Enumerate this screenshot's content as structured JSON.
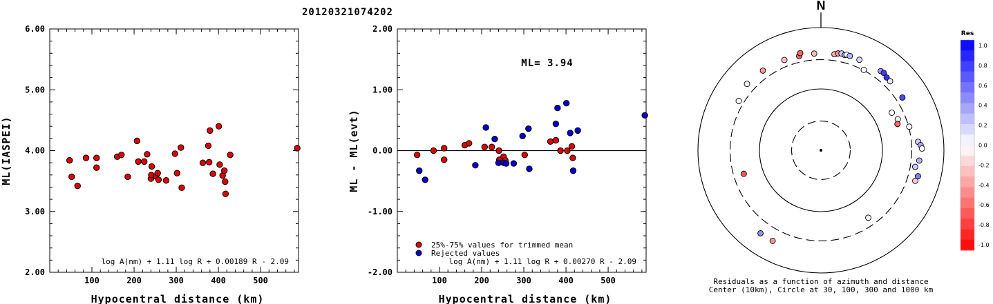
{
  "title": "20120321074202",
  "chart_data": [
    {
      "type": "scatter",
      "name": "ML(IASPEI) vs distance",
      "xlabel": "Hypocentral distance (km)",
      "ylabel": "ML(IASPEI)",
      "xlim": [
        0,
        590
      ],
      "ylim": [
        2.0,
        6.0
      ],
      "xticks": [
        "100",
        "200",
        "300",
        "400",
        "500"
      ],
      "yticks": [
        "2.00",
        "3.00",
        "4.00",
        "5.00",
        "6.00"
      ],
      "formula": "log A(nm) + 1.11 log R + 0.00189 R - 2.09",
      "point_color": "#dd0000",
      "points": [
        [
          47,
          3.84
        ],
        [
          52,
          3.57
        ],
        [
          66,
          3.42
        ],
        [
          86,
          3.88
        ],
        [
          111,
          3.88
        ],
        [
          111,
          3.72
        ],
        [
          160,
          3.9
        ],
        [
          170,
          3.93
        ],
        [
          185,
          3.57
        ],
        [
          207,
          4.16
        ],
        [
          210,
          3.82
        ],
        [
          224,
          3.82
        ],
        [
          231,
          3.94
        ],
        [
          240,
          3.54
        ],
        [
          241,
          3.6
        ],
        [
          242,
          3.74
        ],
        [
          252,
          3.58
        ],
        [
          256,
          3.63
        ],
        [
          258,
          3.52
        ],
        [
          276,
          3.51
        ],
        [
          297,
          3.95
        ],
        [
          302,
          3.63
        ],
        [
          311,
          4.05
        ],
        [
          313,
          3.39
        ],
        [
          363,
          3.8
        ],
        [
          376,
          4.08
        ],
        [
          378,
          3.81
        ],
        [
          380,
          4.33
        ],
        [
          387,
          3.62
        ],
        [
          401,
          4.4
        ],
        [
          403,
          3.77
        ],
        [
          410,
          3.59
        ],
        [
          414,
          3.67
        ],
        [
          416,
          3.49
        ],
        [
          417,
          3.29
        ],
        [
          428,
          3.93
        ],
        [
          587,
          4.04
        ]
      ]
    },
    {
      "type": "scatter",
      "name": "ML residual vs distance",
      "xlabel": "Hypocentral distance (km)",
      "ylabel": "ML - ML(evt)",
      "xlim": [
        0,
        590
      ],
      "ylim": [
        -2.0,
        2.0
      ],
      "xticks": [
        "100",
        "200",
        "300",
        "400",
        "500"
      ],
      "yticks": [
        "-2.00",
        "-1.00",
        "0.00",
        "1.00",
        "2.00"
      ],
      "annotation": "ML= 3.94",
      "formula": "log A(nm) + 1.11 log R + 0.00270 R - 2.09",
      "legend": [
        {
          "label": "25%-75% values for trimmed mean",
          "color": "#dd0000"
        },
        {
          "label": "Rejected values",
          "color": "#0000cc"
        }
      ],
      "series": [
        {
          "name": "25%-75% values for trimmed mean",
          "color": "#dd0000",
          "points": [
            [
              47,
              -0.07
            ],
            [
              86,
              0.0
            ],
            [
              111,
              0.04
            ],
            [
              111,
              -0.15
            ],
            [
              160,
              0.09
            ],
            [
              170,
              0.12
            ],
            [
              207,
              0.06
            ],
            [
              224,
              0.06
            ],
            [
              241,
              0.0
            ],
            [
              242,
              -0.15
            ],
            [
              252,
              -0.1
            ],
            [
              256,
              -0.16
            ],
            [
              302,
              -0.07
            ],
            [
              363,
              0.15
            ],
            [
              376,
              0.17
            ],
            [
              387,
              0.0
            ],
            [
              403,
              0.0
            ],
            [
              414,
              0.07
            ],
            [
              416,
              -0.12
            ]
          ]
        },
        {
          "name": "Rejected values",
          "color": "#0000cc",
          "points": [
            [
              52,
              -0.33
            ],
            [
              66,
              -0.48
            ],
            [
              185,
              -0.24
            ],
            [
              210,
              0.38
            ],
            [
              231,
              0.19
            ],
            [
              240,
              -0.2
            ],
            [
              252,
              -0.2
            ],
            [
              258,
              -0.21
            ],
            [
              276,
              -0.21
            ],
            [
              297,
              0.24
            ],
            [
              311,
              0.36
            ],
            [
              313,
              -0.3
            ],
            [
              376,
              0.44
            ],
            [
              380,
              0.7
            ],
            [
              401,
              0.78
            ],
            [
              410,
              0.29
            ],
            [
              417,
              -0.33
            ],
            [
              428,
              0.33
            ],
            [
              587,
              0.58
            ]
          ]
        }
      ]
    },
    {
      "type": "polar-scatter",
      "name": "Residuals as a function of azimuth and distance",
      "north_label": "N",
      "caption_line1": "Residuals as a function of azimuth and distance",
      "caption_line2": "Center (10km), Circle at 30, 100, 300 and 1000 km",
      "rings_km": [
        30,
        100,
        300,
        1000
      ],
      "colorbar": {
        "title": "Res",
        "min": -1.0,
        "max": 1.0,
        "ticks": [
          "1.0",
          "0.8",
          "0.6",
          "0.4",
          "0.2",
          "0.0",
          "-0.2",
          "-0.4",
          "-0.6",
          "-0.8",
          "-1.0"
        ]
      },
      "points": [
        {
          "azimuth": 347,
          "distance_km": 376,
          "residual": -0.6
        },
        {
          "azimuth": 348,
          "distance_km": 416,
          "residual": -0.6
        },
        {
          "azimuth": 338,
          "distance_km": 387,
          "residual": -0.25
        },
        {
          "azimuth": 324,
          "distance_km": 403,
          "residual": -0.4
        },
        {
          "azimuth": 312,
          "distance_km": 414,
          "residual": -0.05
        },
        {
          "azimuth": 301,
          "distance_km": 363,
          "residual": 0.0
        },
        {
          "azimuth": 356,
          "distance_km": 380,
          "residual": -0.25
        },
        {
          "azimuth": 8,
          "distance_km": 381,
          "residual": -0.3
        },
        {
          "azimuth": 10,
          "distance_km": 401,
          "residual": -0.45
        },
        {
          "azimuth": 12,
          "distance_km": 410,
          "residual": 0.2
        },
        {
          "azimuth": 14,
          "distance_km": 398,
          "residual": 0.4
        },
        {
          "azimuth": 15,
          "distance_km": 411,
          "residual": 0.0
        },
        {
          "azimuth": 17,
          "distance_km": 405,
          "residual": 0.3
        },
        {
          "azimuth": 23,
          "distance_km": 400,
          "residual": 0.15
        },
        {
          "azimuth": 28,
          "distance_km": 305,
          "residual": 0.0
        },
        {
          "azimuth": 37,
          "distance_km": 413,
          "residual": 0.4
        },
        {
          "azimuth": 39,
          "distance_km": 420,
          "residual": 0.75
        },
        {
          "azimuth": 42,
          "distance_km": 395,
          "residual": 0.8
        },
        {
          "azimuth": 45,
          "distance_km": 390,
          "residual": 0.1
        },
        {
          "azimuth": 57,
          "distance_km": 380,
          "residual": 0.7
        },
        {
          "azimuth": 62,
          "distance_km": 202,
          "residual": 0.0
        },
        {
          "azimuth": 68,
          "distance_km": 223,
          "residual": -0.05
        },
        {
          "azimuth": 71,
          "distance_km": 207,
          "residual": -0.6
        },
        {
          "azimuth": 75,
          "distance_km": 307,
          "residual": 0.0
        },
        {
          "azimuth": 85,
          "distance_km": 385,
          "residual": 0.2
        },
        {
          "azimuth": 87,
          "distance_km": 420,
          "residual": 0.35
        },
        {
          "azimuth": 89,
          "distance_km": 440,
          "residual": 0.0
        },
        {
          "azimuth": 96,
          "distance_km": 405,
          "residual": 0.3
        },
        {
          "azimuth": 100,
          "distance_km": 360,
          "residual": 0.2
        },
        {
          "azimuth": 105,
          "distance_km": 430,
          "residual": 0.5
        },
        {
          "azimuth": 108,
          "distance_km": 410,
          "residual": -0.2
        },
        {
          "azimuth": 145,
          "distance_km": 220,
          "residual": 0.0
        },
        {
          "azimuth": 208,
          "distance_km": 470,
          "residual": -0.4
        },
        {
          "azimuth": 216,
          "distance_km": 470,
          "residual": 0.45
        },
        {
          "azimuth": 253,
          "distance_km": 205,
          "residual": -0.65
        }
      ]
    }
  ]
}
